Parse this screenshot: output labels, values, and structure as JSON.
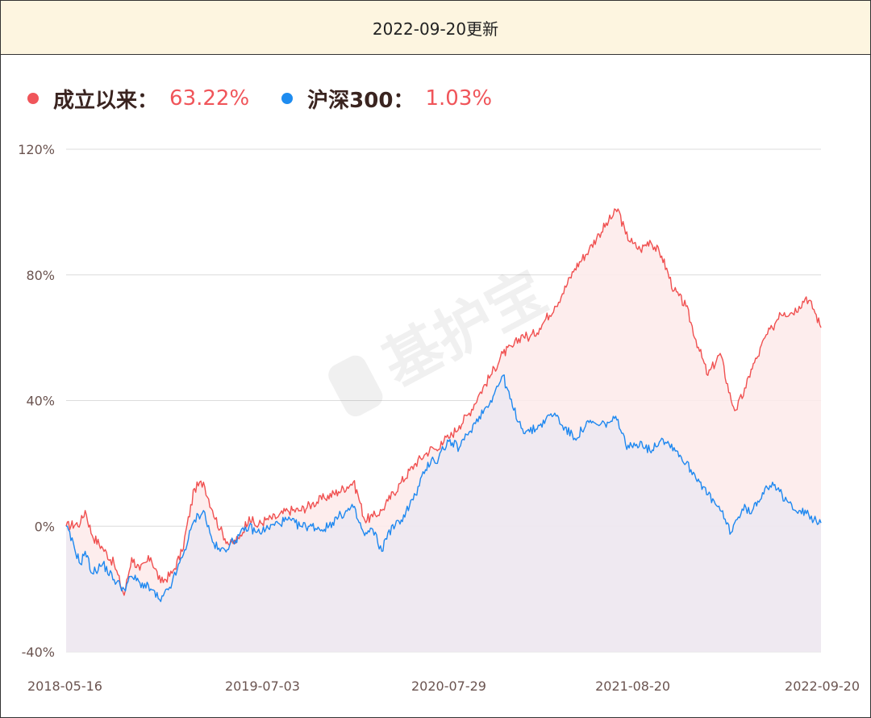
{
  "header": {
    "title": "2022-09-20更新"
  },
  "legend": [
    {
      "label": "成立以来",
      "value": "63.22%",
      "color": "#f0555a"
    },
    {
      "label": "沪深300",
      "value": "1.03%",
      "color": "#1e8cf0"
    }
  ],
  "watermark": {
    "text": "基护宝"
  },
  "colors": {
    "fund_line": "#f05050",
    "fund_fill": "#fdeaea",
    "index_line": "#1e88f0",
    "index_fill": "#ece8f1",
    "grid": "#dcdcdc"
  },
  "chart_data": {
    "type": "line",
    "title": "",
    "xlabel": "",
    "ylabel": "",
    "ylim": [
      -40,
      120
    ],
    "y_ticks": [
      "120%",
      "80%",
      "40%",
      "0%",
      "-40%"
    ],
    "y_tick_values": [
      120,
      80,
      40,
      0,
      -40
    ],
    "x_tick_labels": [
      "2018-05-16",
      "2019-07-03",
      "2020-07-29",
      "2021-08-20",
      "2022-09-20"
    ],
    "x_tick_dates": [
      "2018-05-16",
      "2019-07-03",
      "2020-07-29",
      "2021-08-20",
      "2022-09-20"
    ],
    "grid": true,
    "legend_position": "top-left",
    "series": [
      {
        "name": "成立以来",
        "x": [
          "2018-05-16",
          "2018-06-15",
          "2018-06-25",
          "2018-07-10",
          "2018-08-01",
          "2018-08-25",
          "2018-09-15",
          "2018-10-01",
          "2018-10-18",
          "2018-11-10",
          "2018-12-01",
          "2018-12-25",
          "2019-01-15",
          "2019-02-10",
          "2019-03-01",
          "2019-03-20",
          "2019-04-05",
          "2019-04-25",
          "2019-05-15",
          "2019-06-05",
          "2019-06-20",
          "2019-07-10",
          "2019-08-05",
          "2019-08-25",
          "2019-09-20",
          "2019-10-15",
          "2019-11-10",
          "2019-12-10",
          "2020-01-10",
          "2020-01-20",
          "2020-02-03",
          "2020-02-20",
          "2020-03-10",
          "2020-03-23",
          "2020-04-20",
          "2020-05-20",
          "2020-06-10",
          "2020-06-25",
          "2020-07-05",
          "2020-07-13",
          "2020-07-29",
          "2020-08-20",
          "2020-09-10",
          "2020-10-01",
          "2020-10-25",
          "2020-11-20",
          "2020-12-10",
          "2020-12-31",
          "2021-01-15",
          "2021-02-05",
          "2021-02-18",
          "2021-03-09",
          "2021-03-25",
          "2021-04-20",
          "2021-05-20",
          "2021-06-10",
          "2021-06-30",
          "2021-07-20",
          "2021-08-05",
          "2021-08-20",
          "2021-09-05",
          "2021-09-25",
          "2021-10-20",
          "2021-11-15",
          "2021-12-10",
          "2022-01-05",
          "2022-01-25",
          "2022-02-20",
          "2022-03-15",
          "2022-03-25",
          "2022-04-15",
          "2022-04-26",
          "2022-05-10",
          "2022-05-25",
          "2022-06-10",
          "2022-06-25",
          "2022-07-05",
          "2022-07-20",
          "2022-08-05",
          "2022-08-20",
          "2022-09-05",
          "2022-09-20"
        ],
        "values": [
          0,
          1,
          5,
          -3,
          -7,
          -12,
          -22,
          -10,
          -14,
          -10,
          -18,
          -15,
          -8,
          12,
          14,
          5,
          -1,
          -6,
          -4,
          3,
          0,
          2,
          3,
          5,
          5,
          7,
          9,
          11,
          14,
          10,
          2,
          3,
          5,
          8,
          14,
          20,
          23,
          25,
          24,
          27,
          28,
          32,
          36,
          42,
          48,
          55,
          57,
          61,
          60,
          63,
          66,
          70,
          74,
          82,
          88,
          93,
          97,
          101,
          93,
          90,
          88,
          91,
          86,
          75,
          70,
          57,
          48,
          55,
          40,
          37,
          44,
          50,
          54,
          60,
          63,
          68,
          68,
          68,
          70,
          73,
          69,
          63.22
        ]
      },
      {
        "name": "沪深300",
        "x": [
          "2018-05-16",
          "2018-06-15",
          "2018-06-25",
          "2018-07-10",
          "2018-08-01",
          "2018-08-25",
          "2018-09-15",
          "2018-10-01",
          "2018-10-18",
          "2018-11-10",
          "2018-12-01",
          "2018-12-25",
          "2019-01-15",
          "2019-02-10",
          "2019-03-01",
          "2019-03-20",
          "2019-04-05",
          "2019-04-25",
          "2019-05-15",
          "2019-06-05",
          "2019-06-20",
          "2019-07-10",
          "2019-08-05",
          "2019-08-25",
          "2019-09-20",
          "2019-10-15",
          "2019-11-10",
          "2019-12-10",
          "2020-01-10",
          "2020-01-20",
          "2020-02-03",
          "2020-02-20",
          "2020-03-10",
          "2020-03-23",
          "2020-04-20",
          "2020-05-20",
          "2020-06-10",
          "2020-06-25",
          "2020-07-05",
          "2020-07-13",
          "2020-07-29",
          "2020-08-20",
          "2020-09-10",
          "2020-10-01",
          "2020-10-25",
          "2020-11-20",
          "2020-12-10",
          "2020-12-31",
          "2021-01-15",
          "2021-02-05",
          "2021-02-18",
          "2021-03-09",
          "2021-03-25",
          "2021-04-20",
          "2021-05-20",
          "2021-06-10",
          "2021-06-30",
          "2021-07-20",
          "2021-08-05",
          "2021-08-20",
          "2021-09-05",
          "2021-09-25",
          "2021-10-20",
          "2021-11-15",
          "2021-12-10",
          "2022-01-05",
          "2022-01-25",
          "2022-02-20",
          "2022-03-15",
          "2022-03-25",
          "2022-04-15",
          "2022-04-26",
          "2022-05-10",
          "2022-05-25",
          "2022-06-10",
          "2022-06-25",
          "2022-07-05",
          "2022-07-20",
          "2022-08-05",
          "2022-08-20",
          "2022-09-05",
          "2022-09-20"
        ],
        "values": [
          0,
          -12,
          -8,
          -15,
          -12,
          -17,
          -20,
          -16,
          -18,
          -20,
          -24,
          -18,
          -10,
          2,
          5,
          -5,
          -8,
          -6,
          -3,
          0,
          -2,
          -1,
          1,
          2,
          0,
          0,
          -1,
          3,
          6,
          2,
          -3,
          -1,
          -8,
          -2,
          2,
          10,
          18,
          22,
          20,
          24,
          27,
          25,
          30,
          35,
          40,
          48,
          38,
          31,
          30,
          32,
          34,
          36,
          32,
          28,
          33,
          32,
          33,
          34,
          26,
          25,
          27,
          24,
          28,
          25,
          20,
          15,
          10,
          5,
          -2,
          2,
          6,
          4,
          8,
          12,
          14,
          11,
          8,
          7,
          5,
          4,
          2,
          1.03
        ]
      }
    ]
  }
}
